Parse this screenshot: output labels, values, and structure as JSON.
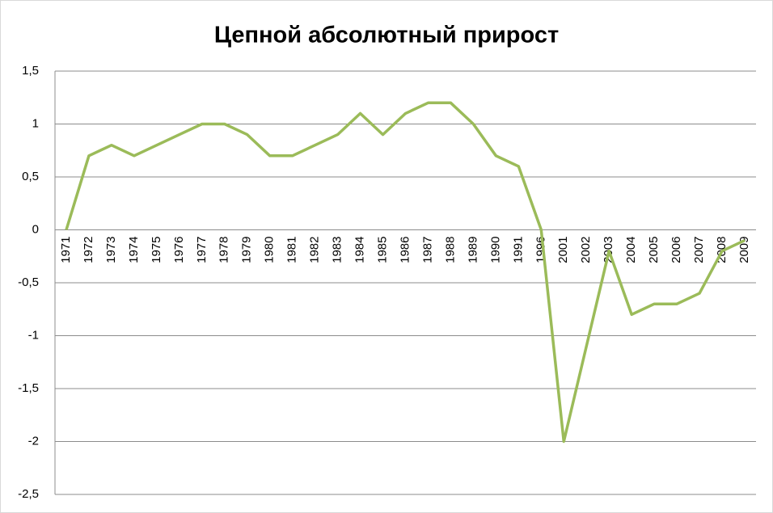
{
  "chart_data": {
    "type": "line",
    "title": "Цепной абсолютный прирост",
    "categories": [
      "1971",
      "1972",
      "1973",
      "1974",
      "1975",
      "1976",
      "1977",
      "1978",
      "1979",
      "1980",
      "1981",
      "1982",
      "1983",
      "1984",
      "1985",
      "1986",
      "1987",
      "1988",
      "1989",
      "1990",
      "1991",
      "1996",
      "2001",
      "2002",
      "2003",
      "2004",
      "2005",
      "2006",
      "2007",
      "2008",
      "2009"
    ],
    "values": [
      0,
      0.7,
      0.8,
      0.7,
      0.8,
      0.9,
      1.0,
      1.0,
      0.9,
      0.7,
      0.7,
      0.8,
      0.9,
      1.1,
      0.9,
      1.1,
      1.2,
      1.2,
      1.0,
      0.7,
      0.6,
      0,
      -2.0,
      -1.1,
      -0.2,
      -0.8,
      -0.7,
      -0.7,
      -0.6,
      -0.2,
      -0.1
    ],
    "color": "#9bbb59",
    "ylim": [
      -2.5,
      1.5
    ],
    "yticks": [
      {
        "value": -2.5,
        "label": "-2,5"
      },
      -2,
      {
        "value": -1.5,
        "label": "-1,5"
      },
      -1,
      {
        "value": -0.5,
        "label": "-0,5"
      },
      0,
      {
        "value": 0.5,
        "label": "0,5"
      },
      1,
      {
        "value": 1.5,
        "label": "1,5"
      }
    ],
    "grid": true
  }
}
